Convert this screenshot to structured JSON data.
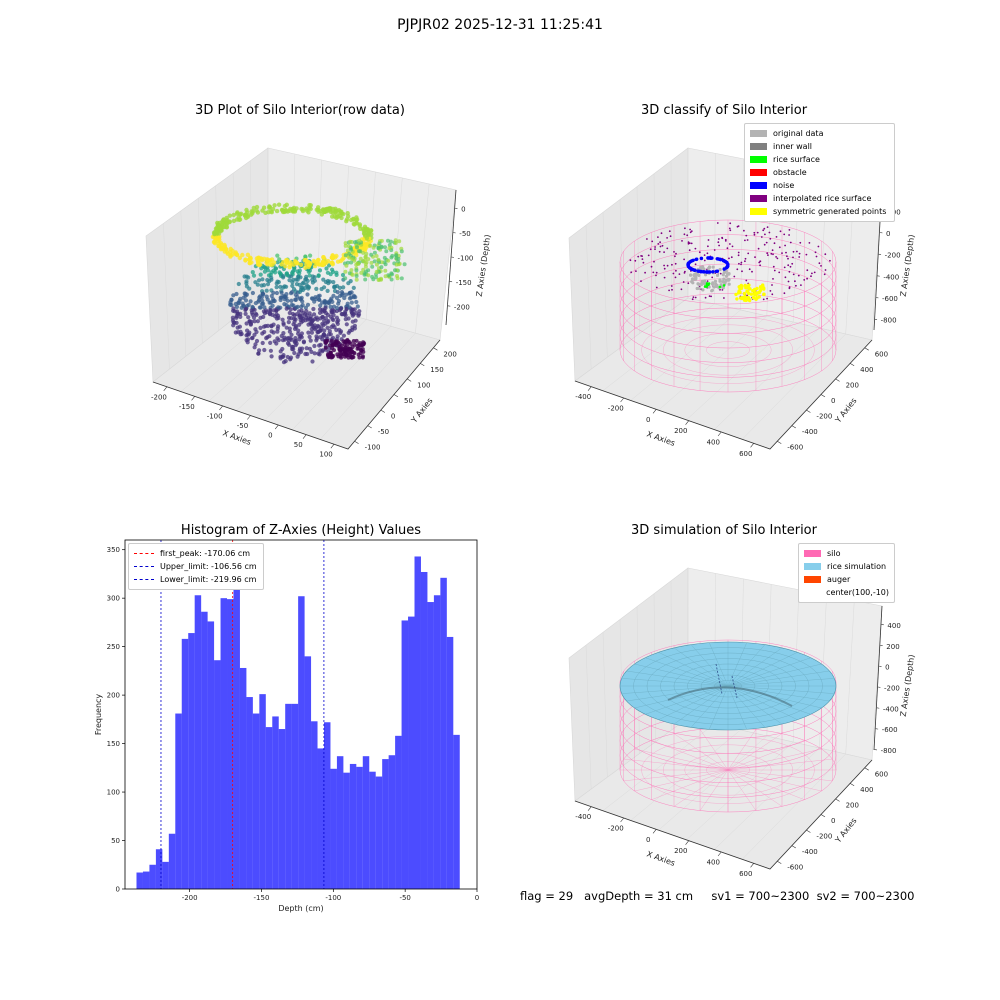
{
  "figure": {
    "suptitle": "PJPJR02 2025-12-31 11:25:41",
    "footer": "flag = 29   avgDepth = 31 cm     sv1 = 700~2300  sv2 = 700~2300"
  },
  "colors": {
    "silo": "#ff69b4",
    "rice_simulation": "#87ceeb",
    "auger": "#ff4500",
    "histogram": "#0000ff",
    "first_peak": "#ff0000",
    "limits": "#0000cc"
  },
  "chart_data": [
    {
      "type": "scatter",
      "title": "3D Plot of Silo Interior(row data)",
      "xlabel": "X Axies",
      "ylabel": "Y Axies",
      "zlabel": "Z Axies (Depth)",
      "xticks": [
        "-200",
        "-150",
        "-100",
        "-50",
        "0",
        "50",
        "100"
      ],
      "yticks": [
        "-100",
        "-50",
        "0",
        "50",
        "100",
        "150",
        "200"
      ],
      "zticks": [
        "0",
        "-50",
        "-100",
        "-150",
        "-200"
      ],
      "xlim": [
        -230,
        120
      ],
      "ylim": [
        -120,
        220
      ],
      "zlim": [
        -235,
        0
      ],
      "colormap": "viridis"
    },
    {
      "type": "scatter",
      "title": "3D classify of Silo Interior",
      "xlabel": "X Axies",
      "ylabel": "Y Axies",
      "zlabel": "Z Axies (Depth)",
      "xticks": [
        "-400",
        "-200",
        "0",
        "200",
        "400",
        "600"
      ],
      "yticks": [
        "-600",
        "-400",
        "-200",
        "0",
        "200",
        "400",
        "600"
      ],
      "zticks": [
        "200",
        "0",
        "-200",
        "-400",
        "-600",
        "-800"
      ],
      "legend": [
        {
          "label": "original data",
          "color": "#b3b3b3"
        },
        {
          "label": "inner wall",
          "color": "#808080"
        },
        {
          "label": "rice surface",
          "color": "#00ff00"
        },
        {
          "label": "obstacle",
          "color": "#ff0000"
        },
        {
          "label": "noise",
          "color": "#0000ff"
        },
        {
          "label": "interpolated rice surface",
          "color": "#800080"
        },
        {
          "label": "symmetric generated points",
          "color": "#ffff00"
        }
      ],
      "legend_position": "top-right"
    },
    {
      "type": "bar",
      "title": "Histogram of Z-Axies (Height) Values",
      "xlabel": "Depth (cm)",
      "ylabel": "Frequency",
      "xlim": [
        -245,
        0
      ],
      "ylim": [
        0,
        360
      ],
      "xticks": [
        -200,
        -150,
        -100,
        -50,
        0
      ],
      "yticks": [
        0,
        50,
        100,
        150,
        200,
        250,
        300,
        350
      ],
      "bin_start": -237,
      "bin_width": 4.5,
      "values": [
        17,
        18,
        25,
        41,
        28,
        57,
        181,
        258,
        264,
        303,
        286,
        276,
        236,
        300,
        299,
        309,
        228,
        198,
        181,
        201,
        167,
        178,
        165,
        191,
        191,
        302,
        240,
        173,
        145,
        172,
        124,
        137,
        120,
        129,
        126,
        137,
        121,
        116,
        134,
        138,
        158,
        277,
        281,
        343,
        327,
        296,
        303,
        321,
        260,
        159
      ],
      "legend": [
        {
          "label": "first_peak: -170.06 cm",
          "value": -170.06,
          "color": "#ff0000"
        },
        {
          "label": "Upper_limit: -106.56 cm",
          "value": -106.56,
          "color": "#0000cc"
        },
        {
          "label": "Lower_limit: -219.96 cm",
          "value": -219.96,
          "color": "#0000cc"
        }
      ],
      "legend_position": "top-left"
    },
    {
      "type": "scatter",
      "title": "3D simulation of Silo Interior",
      "xlabel": "X Axies",
      "ylabel": "Y Axies",
      "zlabel": "Z Axies (Depth)",
      "xticks": [
        "-400",
        "-200",
        "0",
        "200",
        "400",
        "600"
      ],
      "yticks": [
        "-600",
        "-400",
        "-200",
        "0",
        "200",
        "400",
        "600"
      ],
      "zticks": [
        "400",
        "200",
        "0",
        "-200",
        "-400",
        "-600",
        "-800"
      ],
      "legend": [
        {
          "label": "silo",
          "color": "#ff69b4"
        },
        {
          "label": "rice simulation",
          "color": "#87ceeb"
        },
        {
          "label": "auger",
          "color": "#ff4500"
        },
        {
          "label": "center(100,-10)",
          "color": ""
        }
      ],
      "legend_position": "top-right"
    }
  ]
}
